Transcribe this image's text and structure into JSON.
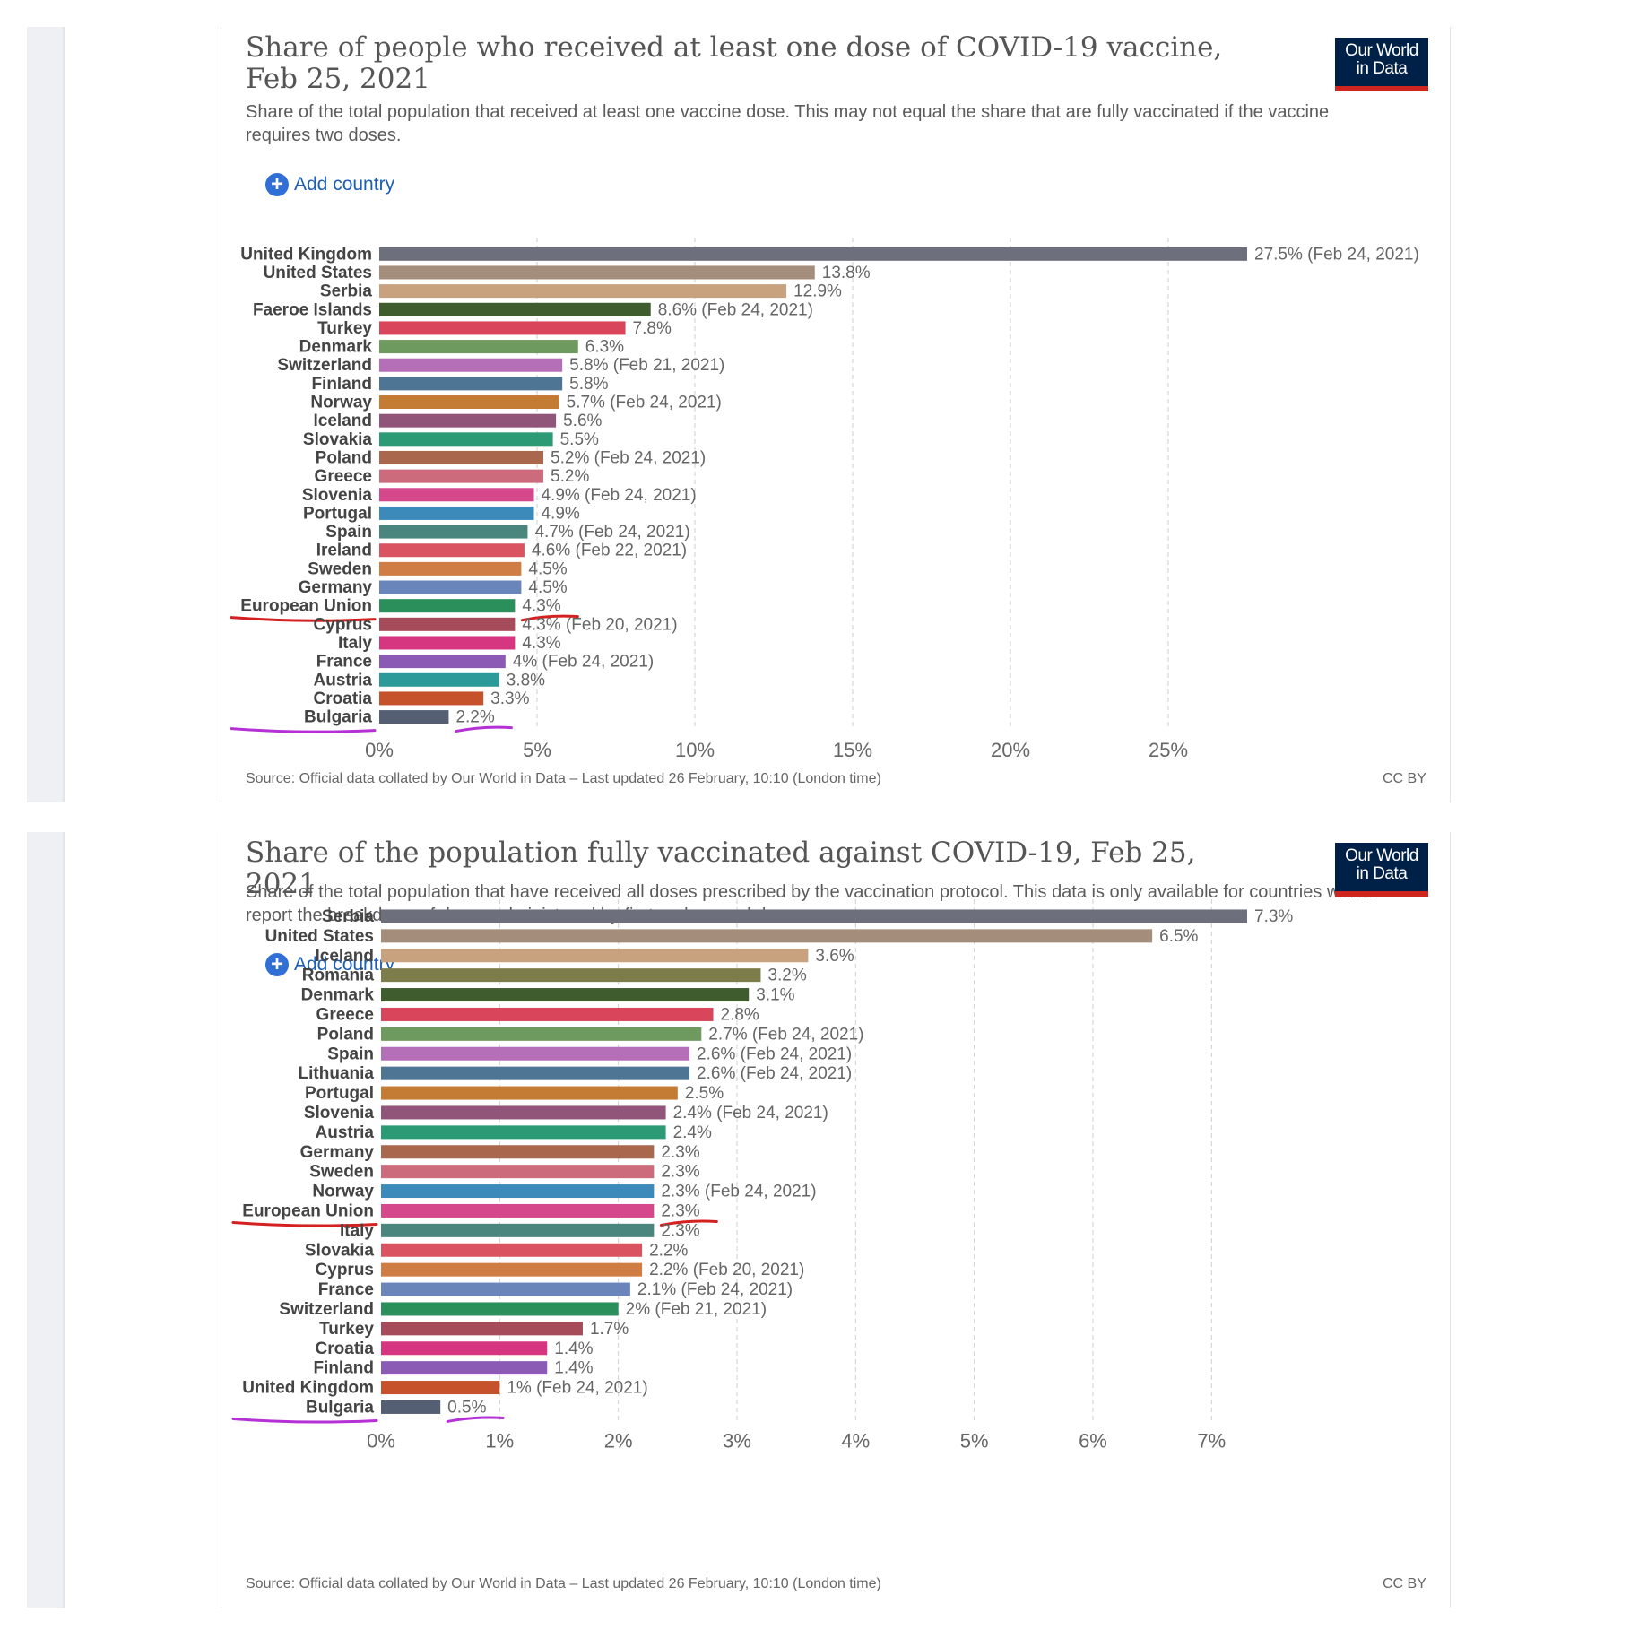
{
  "chart_data": [
    {
      "type": "bar",
      "title": "Share of people who received at least one dose of COVID-19 vaccine, Feb 25, 2021",
      "subtitle": "Share of the total population that received at least one vaccine dose. This may not equal the share that are fully vaccinated if the vaccine requires two doses.",
      "add_country": "Add country",
      "source": "Source: Official data collated by Our World in Data – Last updated 26 February, 10:10 (London time)",
      "license": "CC BY",
      "xlim": [
        0,
        27.5
      ],
      "xticks": [
        0,
        5,
        10,
        15,
        20,
        25
      ],
      "tick_labels": [
        "0%",
        "5%",
        "10%",
        "15%",
        "20%",
        "25%"
      ],
      "grid": true,
      "categories": [
        "United Kingdom",
        "United States",
        "Serbia",
        "Faeroe Islands",
        "Turkey",
        "Denmark",
        "Switzerland",
        "Finland",
        "Norway",
        "Iceland",
        "Slovakia",
        "Poland",
        "Greece",
        "Slovenia",
        "Portugal",
        "Spain",
        "Ireland",
        "Sweden",
        "Germany",
        "European Union",
        "Cyprus",
        "Italy",
        "France",
        "Austria",
        "Croatia",
        "Bulgaria"
      ],
      "values": [
        27.5,
        13.8,
        12.9,
        8.6,
        7.8,
        6.3,
        5.8,
        5.8,
        5.7,
        5.6,
        5.5,
        5.2,
        5.2,
        4.9,
        4.9,
        4.7,
        4.6,
        4.5,
        4.5,
        4.3,
        4.3,
        4.3,
        4,
        3.8,
        3.3,
        2.2
      ],
      "value_labels": [
        "27.5% (Feb 24, 2021)",
        "13.8%",
        "12.9%",
        "8.6% (Feb 24, 2021)",
        "7.8%",
        "6.3%",
        "5.8% (Feb 21, 2021)",
        "5.8%",
        "5.7% (Feb 24, 2021)",
        "5.6%",
        "5.5%",
        "5.2% (Feb 24, 2021)",
        "5.2%",
        "4.9% (Feb 24, 2021)",
        "4.9%",
        "4.7% (Feb 24, 2021)",
        "4.6% (Feb 22, 2021)",
        "4.5%",
        "4.5%",
        "4.3%",
        "4.3% (Feb 20, 2021)",
        "4.3%",
        "4% (Feb 24, 2021)",
        "3.8%",
        "3.3%",
        "2.2%"
      ],
      "colors": [
        "#6d6f7c",
        "#a48d7a",
        "#c8a17e",
        "#3e5c2e",
        "#d9465b",
        "#6e9a5f",
        "#b46fb8",
        "#4f7595",
        "#c47c35",
        "#91557a",
        "#2c9a75",
        "#a9674e",
        "#cc6b7c",
        "#d6488c",
        "#3c8aba",
        "#4a857e",
        "#d95460",
        "#cf7d44",
        "#6a85ba",
        "#2b8f5c",
        "#a64b5a",
        "#d6367f",
        "#8a5ab4",
        "#2d9a9a",
        "#c5522b",
        "#555f74"
      ],
      "annotations": [
        {
          "category": "European Union",
          "color": "#d42020"
        },
        {
          "category": "Bulgaria",
          "color": "#b531d6"
        }
      ]
    },
    {
      "type": "bar",
      "title": "Share of the population fully vaccinated against COVID-19, Feb 25, 2021",
      "subtitle": "Share of the total population that have received all doses prescribed by the vaccination protocol. This data is only available for countries which report the breakdown of doses administered by first and second doses.",
      "add_country": "Add country",
      "source": "Source: Official data collated by Our World in Data – Last updated 26 February, 10:10 (London time)",
      "license": "CC BY",
      "xlim": [
        0,
        7.3
      ],
      "xticks": [
        0,
        1,
        2,
        3,
        4,
        5,
        6,
        7
      ],
      "tick_labels": [
        "0%",
        "1%",
        "2%",
        "3%",
        "4%",
        "5%",
        "6%",
        "7%"
      ],
      "grid": true,
      "categories": [
        "Serbia",
        "United States",
        "Iceland",
        "Romania",
        "Denmark",
        "Greece",
        "Poland",
        "Spain",
        "Lithuania",
        "Portugal",
        "Slovenia",
        "Austria",
        "Germany",
        "Sweden",
        "Norway",
        "European Union",
        "Italy",
        "Slovakia",
        "Cyprus",
        "France",
        "Switzerland",
        "Turkey",
        "Croatia",
        "Finland",
        "United Kingdom",
        "Bulgaria"
      ],
      "values": [
        7.3,
        6.5,
        3.6,
        3.2,
        3.1,
        2.8,
        2.7,
        2.6,
        2.6,
        2.5,
        2.4,
        2.4,
        2.3,
        2.3,
        2.3,
        2.3,
        2.3,
        2.2,
        2.2,
        2.1,
        2,
        1.7,
        1.4,
        1.4,
        1,
        0.5
      ],
      "value_labels": [
        "7.3%",
        "6.5%",
        "3.6%",
        "3.2%",
        "3.1%",
        "2.8%",
        "2.7% (Feb 24, 2021)",
        "2.6% (Feb 24, 2021)",
        "2.6% (Feb 24, 2021)",
        "2.5%",
        "2.4% (Feb 24, 2021)",
        "2.4%",
        "2.3%",
        "2.3%",
        "2.3% (Feb 24, 2021)",
        "2.3%",
        "2.3%",
        "2.2%",
        "2.2% (Feb 20, 2021)",
        "2.1% (Feb 24, 2021)",
        "2% (Feb 21, 2021)",
        "1.7%",
        "1.4%",
        "1.4%",
        "1% (Feb 24, 2021)",
        "0.5%"
      ],
      "colors": [
        "#6d6f7c",
        "#a48d7a",
        "#c8a17e",
        "#7c7d4a",
        "#3e5c2e",
        "#d9465b",
        "#6e9a5f",
        "#b46fb8",
        "#4f7595",
        "#c47c35",
        "#91557a",
        "#2c9a75",
        "#a9674e",
        "#cc6b7c",
        "#3c8aba",
        "#d6488c",
        "#4a857e",
        "#d95460",
        "#cf7d44",
        "#6a85ba",
        "#2b8f5c",
        "#a64b5a",
        "#d6367f",
        "#8a5ab4",
        "#c5522b",
        "#555f74"
      ],
      "annotations": [
        {
          "category": "European Union",
          "color": "#d42020"
        },
        {
          "category": "Bulgaria",
          "color": "#b531d6"
        }
      ]
    }
  ],
  "logo": {
    "line1": "Our World",
    "line2": "in Data"
  }
}
